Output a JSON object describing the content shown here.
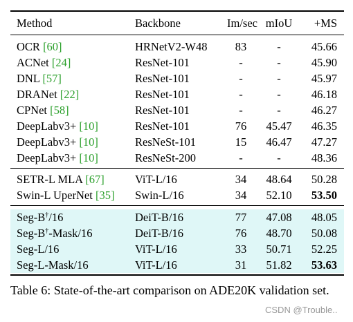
{
  "table": {
    "headers": {
      "method": "Method",
      "backbone": "Backbone",
      "ims": "Im/sec",
      "miou": "mIoU",
      "ms": "+MS"
    },
    "group1": [
      {
        "name": "OCR",
        "ref": "[60]",
        "backbone": "HRNetV2-W48",
        "ims": "83",
        "miou": "-",
        "ms": "45.66"
      },
      {
        "name": "ACNet",
        "ref": "[24]",
        "backbone": "ResNet-101",
        "ims": "-",
        "miou": "-",
        "ms": "45.90"
      },
      {
        "name": "DNL",
        "ref": "[57]",
        "backbone": "ResNet-101",
        "ims": "-",
        "miou": "-",
        "ms": "45.97"
      },
      {
        "name": "DRANet",
        "ref": "[22]",
        "backbone": "ResNet-101",
        "ims": "-",
        "miou": "-",
        "ms": "46.18"
      },
      {
        "name": "CPNet",
        "ref": "[58]",
        "backbone": "ResNet-101",
        "ims": "-",
        "miou": "-",
        "ms": "46.27"
      },
      {
        "name": "DeepLabv3+",
        "ref": "[10]",
        "backbone": "ResNet-101",
        "ims": "76",
        "miou": "45.47",
        "ms": "46.35"
      },
      {
        "name": "DeepLabv3+",
        "ref": "[10]",
        "backbone": "ResNeSt-101",
        "ims": "15",
        "miou": "46.47",
        "ms": "47.27"
      },
      {
        "name": "DeepLabv3+",
        "ref": "[10]",
        "backbone": "ResNeSt-200",
        "ims": "-",
        "miou": "-",
        "ms": "48.36"
      }
    ],
    "group2": [
      {
        "name": "SETR-L MLA",
        "ref": "[67]",
        "backbone": "ViT-L/16",
        "ims": "34",
        "miou": "48.64",
        "ms": "50.28"
      },
      {
        "name": "Swin-L UperNet",
        "ref": "[35]",
        "backbone": "Swin-L/16",
        "ims": "34",
        "miou": "52.10",
        "ms": "53.50"
      }
    ],
    "group3": [
      {
        "pre": "Seg-B",
        "sup": "†",
        "post": "/16",
        "backbone": "DeiT-B/16",
        "ims": "77",
        "miou": "47.08",
        "ms": "48.05"
      },
      {
        "pre": "Seg-B",
        "sup": "†",
        "post": "-Mask/16",
        "backbone": "DeiT-B/16",
        "ims": "76",
        "miou": "48.70",
        "ms": "50.08"
      },
      {
        "pre": "Seg-L/16",
        "sup": "",
        "post": "",
        "backbone": "ViT-L/16",
        "ims": "33",
        "miou": "50.71",
        "ms": "52.25"
      },
      {
        "pre": "Seg-L-Mask/16",
        "sup": "",
        "post": "",
        "backbone": "ViT-L/16",
        "ims": "31",
        "miou": "51.82",
        "ms": "53.63"
      }
    ]
  },
  "caption": "Table 6: State-of-the-art comparison on ADE20K validation set.",
  "watermark": "CSDN @Trouble.."
}
